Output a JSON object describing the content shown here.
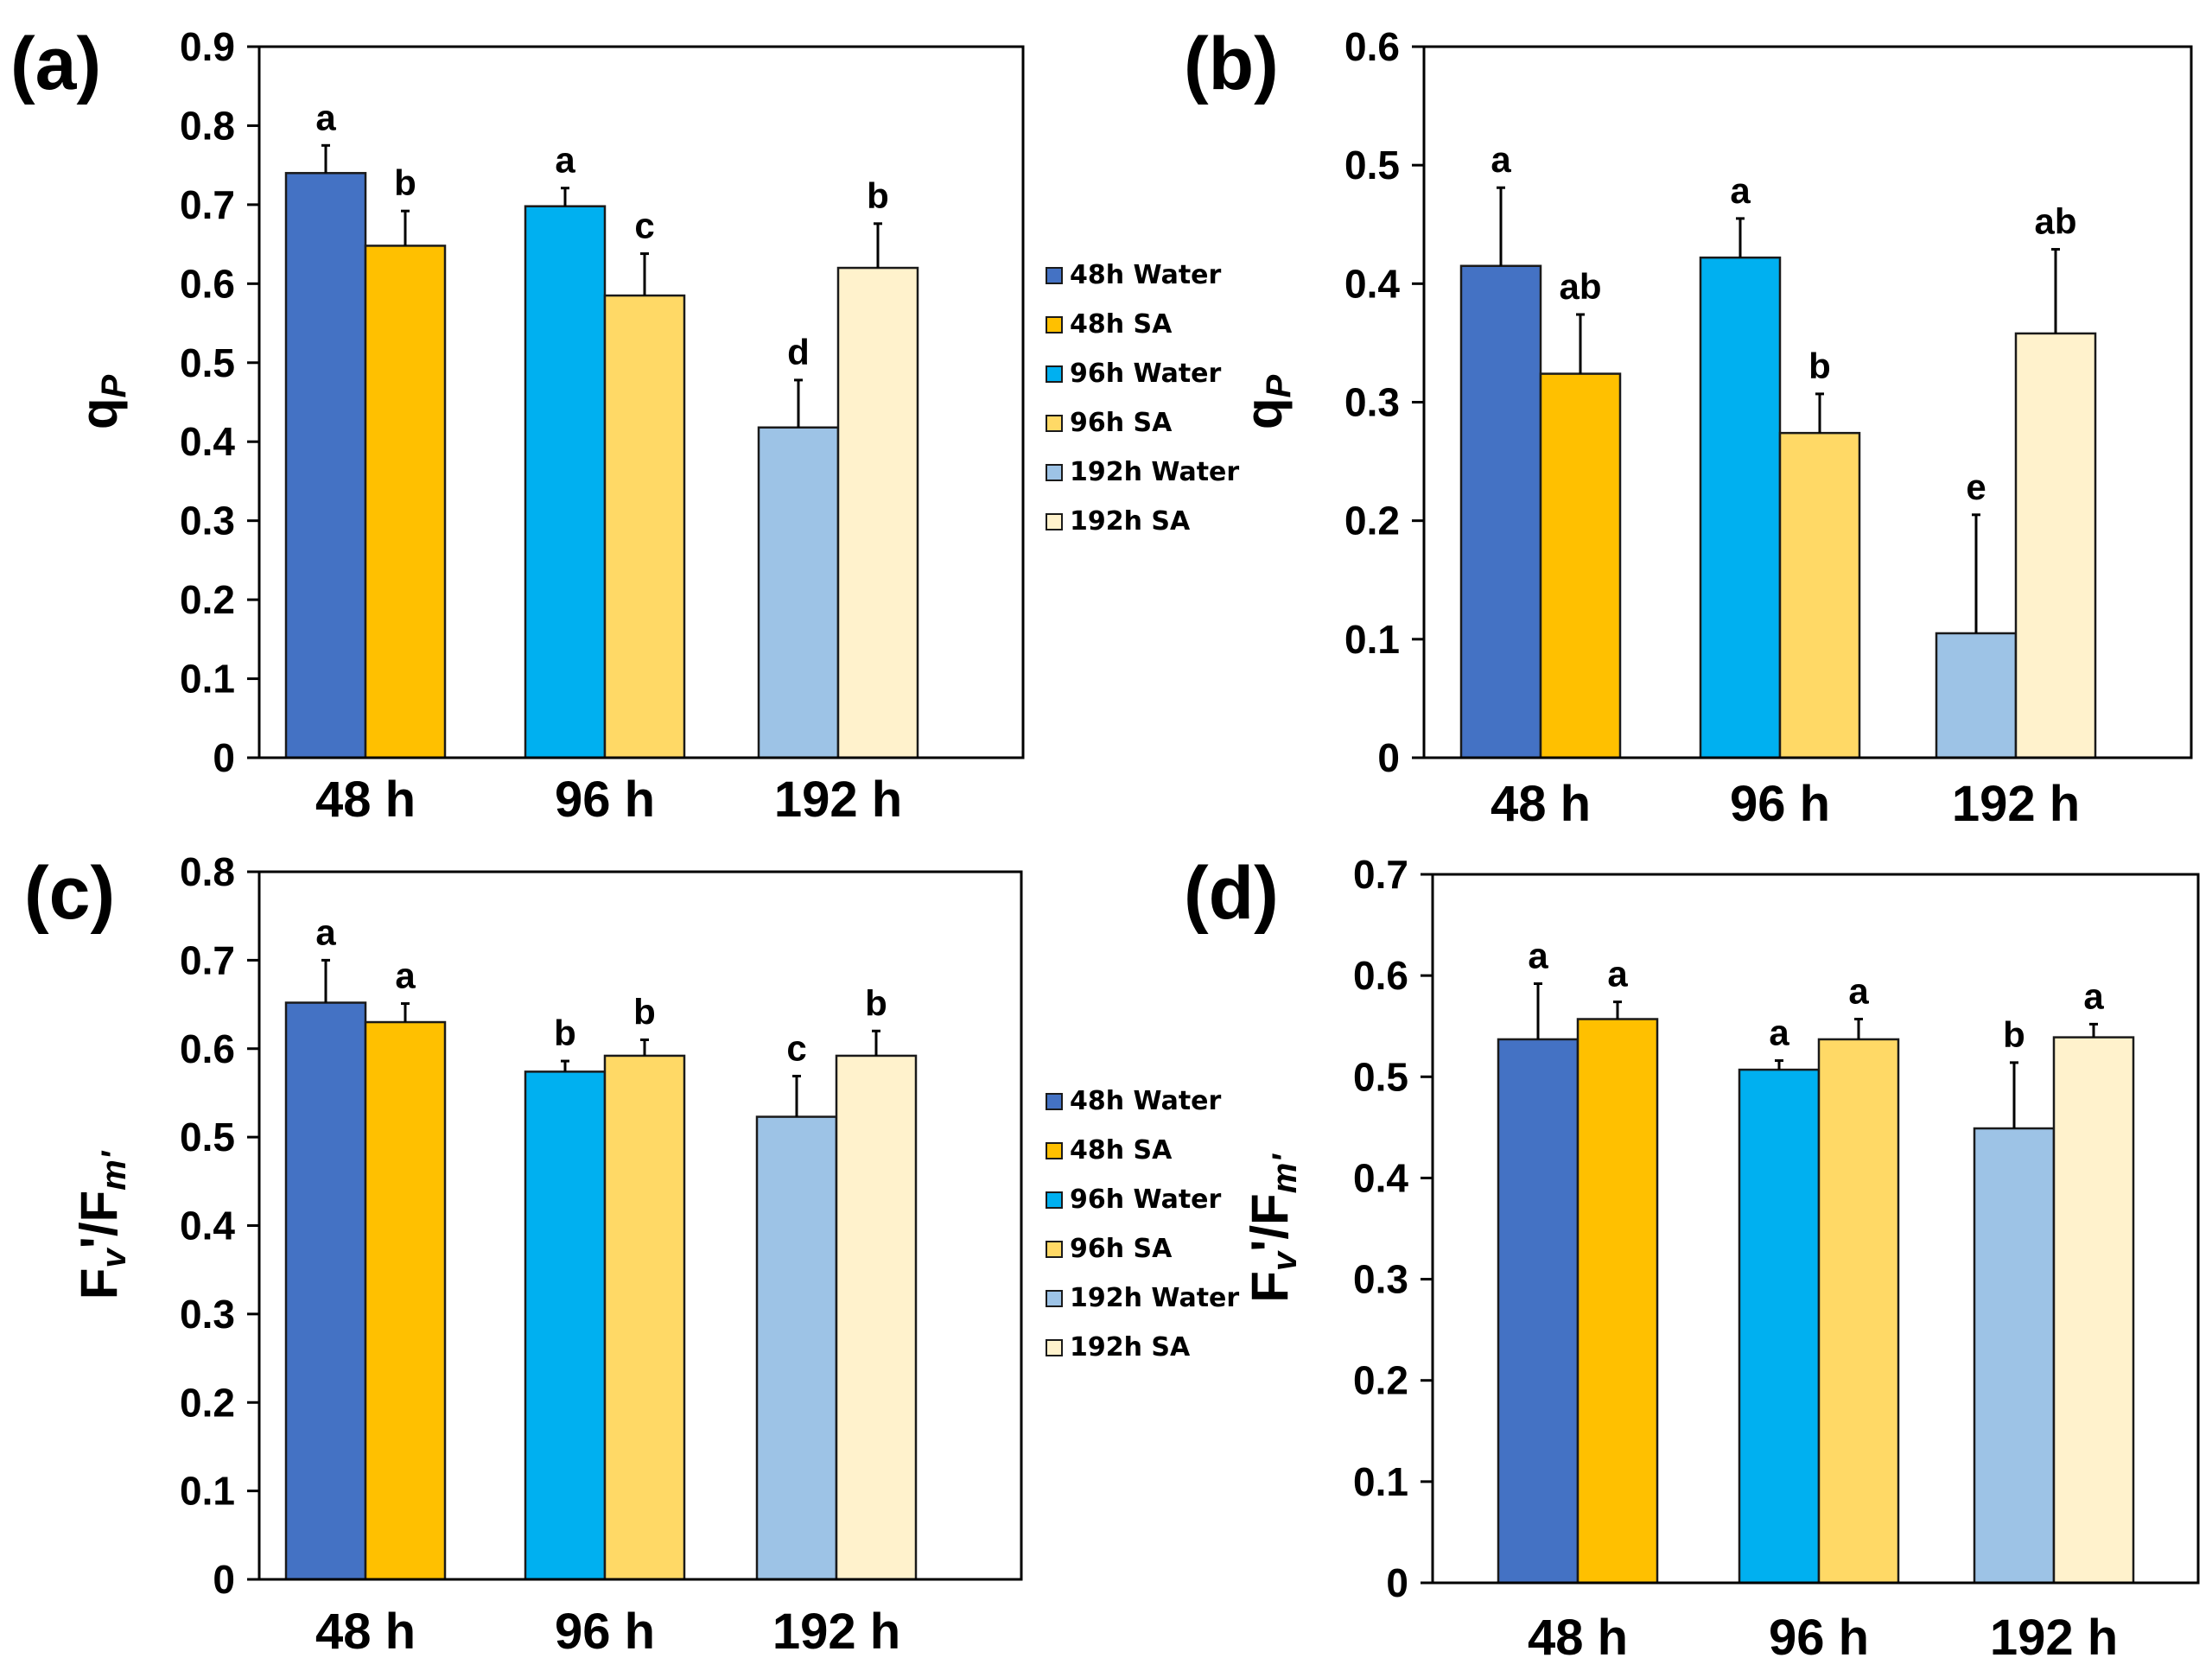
{
  "colors": {
    "48h Water": "#4472C4",
    "48h SA": "#FFC000",
    "96h Water": "#00B0F0",
    "96h SA": "#FFD966",
    "192h Water": "#9DC3E6",
    "192h SA": "#FFF2CC"
  },
  "chart_data": [
    {
      "panel": "(a)",
      "type": "bar",
      "ylabel": "qP",
      "ylabel_main": "q",
      "ylabel_sub": "P",
      "ylim": [
        0,
        0.9
      ],
      "yticks": [
        "0",
        "0.1",
        "0.2",
        "0.3",
        "0.4",
        "0.5",
        "0.6",
        "0.7",
        "0.8",
        "0.9"
      ],
      "categories": [
        "48 h",
        "96 h",
        "192 h"
      ],
      "series": [
        {
          "name": "Water",
          "values": [
            0.74,
            0.698,
            0.418
          ],
          "errors": [
            0.035,
            0.023,
            0.06
          ],
          "letters": [
            "a",
            "a",
            "d"
          ]
        },
        {
          "name": "SA",
          "values": [
            0.648,
            0.585,
            0.62
          ],
          "errors": [
            0.044,
            0.053,
            0.056
          ],
          "letters": [
            "b",
            "c",
            "b"
          ]
        }
      ]
    },
    {
      "panel": "(b)",
      "type": "bar",
      "ylabel": "qP",
      "ylabel_main": "q",
      "ylabel_sub": "P",
      "ylim": [
        0,
        0.6
      ],
      "yticks": [
        "0",
        "0.1",
        "0.2",
        "0.3",
        "0.4",
        "0.5",
        "0.6"
      ],
      "categories": [
        "48 h",
        "96 h",
        "192 h"
      ],
      "series": [
        {
          "name": "Water",
          "values": [
            0.415,
            0.422,
            0.105
          ],
          "errors": [
            0.066,
            0.033,
            0.1
          ],
          "letters": [
            "a",
            "a",
            "e"
          ]
        },
        {
          "name": "SA",
          "values": [
            0.324,
            0.274,
            0.358
          ],
          "errors": [
            0.05,
            0.033,
            0.071
          ],
          "letters": [
            "ab",
            "b",
            "ab"
          ]
        }
      ]
    },
    {
      "panel": "(c)",
      "type": "bar",
      "ylabel": "Fv'/Fm'",
      "ylabel_main": "F",
      "ylabel_sub": "v",
      "ylabel_mid": "'/F",
      "ylabel_sub2": "m'",
      "ylim": [
        0,
        0.8
      ],
      "yticks": [
        "0",
        "0.1",
        "0.2",
        "0.3",
        "0.4",
        "0.5",
        "0.6",
        "0.7",
        "0.8"
      ],
      "categories": [
        "48 h",
        "96 h",
        "192 h"
      ],
      "series": [
        {
          "name": "Water",
          "values": [
            0.652,
            0.574,
            0.523
          ],
          "errors": [
            0.048,
            0.012,
            0.046
          ],
          "letters": [
            "a",
            "b",
            "c"
          ]
        },
        {
          "name": "SA",
          "values": [
            0.63,
            0.592,
            0.592
          ],
          "errors": [
            0.021,
            0.018,
            0.028
          ],
          "letters": [
            "a",
            "b",
            "b"
          ]
        }
      ]
    },
    {
      "panel": "(d)",
      "type": "bar",
      "ylabel": "Fv'/Fm'",
      "ylabel_main": "F",
      "ylabel_sub": "v",
      "ylabel_mid": "'/F",
      "ylabel_sub2": "m'",
      "ylim": [
        0,
        0.7
      ],
      "yticks": [
        "0",
        "0.1",
        "0.2",
        "0.3",
        "0.4",
        "0.5",
        "0.6",
        "0.7"
      ],
      "categories": [
        "48 h",
        "96 h",
        "192 h"
      ],
      "series": [
        {
          "name": "Water",
          "values": [
            0.537,
            0.507,
            0.449
          ],
          "errors": [
            0.055,
            0.009,
            0.065
          ],
          "letters": [
            "a",
            "a",
            "b"
          ]
        },
        {
          "name": "SA",
          "values": [
            0.557,
            0.537,
            0.539
          ],
          "errors": [
            0.017,
            0.02,
            0.013
          ],
          "letters": [
            "a",
            "a",
            "a"
          ]
        }
      ]
    }
  ],
  "legends": [
    {
      "items": [
        "48h Water",
        "48h SA",
        "96h Water",
        "96h SA",
        "192h Water",
        "192h SA"
      ]
    },
    {
      "items": [
        "48h Water",
        "48h SA",
        "96h Water",
        "96h SA",
        "192h Water",
        "192h SA"
      ]
    }
  ]
}
